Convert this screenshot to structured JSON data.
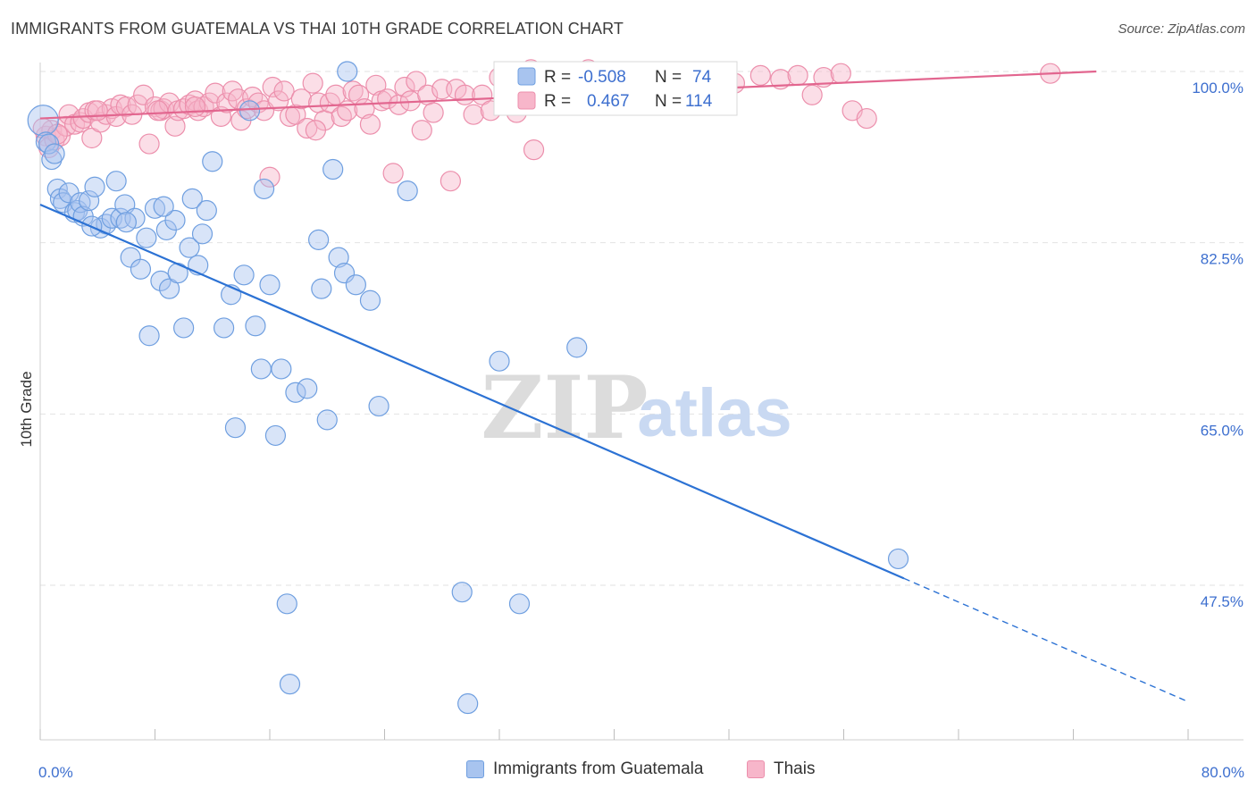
{
  "header": {
    "title": "IMMIGRANTS FROM GUATEMALA VS THAI 10TH GRADE CORRELATION CHART",
    "source": "Source: ZipAtlas.com"
  },
  "watermark": {
    "zip": "ZIP",
    "atlas": "atlas"
  },
  "colors": {
    "blue_fill": "#a8c4ef",
    "blue_stroke": "#6f9fe0",
    "blue_line": "#2c72d4",
    "pink_fill": "#f7b6ca",
    "pink_stroke": "#ec8fac",
    "pink_line": "#e2668f",
    "value_text": "#3d6fcf",
    "grid": "#e2e2e2"
  },
  "stats_legend": [
    {
      "r_label": "R =",
      "r_value": "-0.508",
      "n_label": "N =",
      "n_value": "74"
    },
    {
      "r_label": "R =",
      "r_value": "0.467",
      "n_label": "N =",
      "n_value": "114"
    }
  ],
  "chart_data": {
    "type": "scatter",
    "title": "IMMIGRANTS FROM GUATEMALA VS THAI 10TH GRADE CORRELATION CHART",
    "xlabel": "",
    "ylabel": "10th Grade",
    "xlim": [
      0,
      80
    ],
    "ylim": [
      33,
      103
    ],
    "x_tick_labels": [
      "0.0%",
      "80.0%"
    ],
    "y_ticks": [
      47.5,
      65.0,
      82.5,
      100.0
    ],
    "y_tick_labels": [
      "47.5%",
      "65.0%",
      "82.5%",
      "100.0%"
    ],
    "grid": true,
    "legend_position": "bottom",
    "series": [
      {
        "name": "Immigrants from Guatemala",
        "r": -0.508,
        "n": 74,
        "trend": {
          "x0": 0,
          "y0": 86.4,
          "x1": 60.2,
          "y1": 48.2,
          "dashed_to_x": 80,
          "dashed_to_y": 35.6
        },
        "points": [
          [
            0.2,
            95.0
          ],
          [
            0.4,
            92.8
          ],
          [
            0.8,
            91.0
          ],
          [
            1.2,
            88.0
          ],
          [
            1.4,
            87.0
          ],
          [
            1.6,
            86.6
          ],
          [
            2.0,
            87.6
          ],
          [
            2.4,
            85.6
          ],
          [
            2.6,
            85.8
          ],
          [
            2.8,
            86.6
          ],
          [
            3.0,
            85.2
          ],
          [
            3.4,
            86.8
          ],
          [
            3.8,
            88.2
          ],
          [
            4.2,
            84.0
          ],
          [
            4.6,
            84.4
          ],
          [
            5.0,
            85.0
          ],
          [
            5.3,
            88.8
          ],
          [
            5.6,
            85.0
          ],
          [
            5.9,
            86.4
          ],
          [
            6.3,
            81.0
          ],
          [
            6.6,
            85.0
          ],
          [
            7.0,
            79.8
          ],
          [
            7.4,
            83.0
          ],
          [
            7.6,
            73.0
          ],
          [
            8.0,
            86.0
          ],
          [
            8.4,
            78.6
          ],
          [
            8.8,
            83.8
          ],
          [
            9.0,
            77.8
          ],
          [
            9.4,
            84.8
          ],
          [
            9.6,
            79.4
          ],
          [
            10.0,
            73.8
          ],
          [
            10.4,
            82.0
          ],
          [
            10.6,
            87.0
          ],
          [
            11.0,
            80.2
          ],
          [
            11.3,
            83.4
          ],
          [
            11.6,
            85.8
          ],
          [
            12.0,
            90.8
          ],
          [
            12.8,
            73.8
          ],
          [
            13.3,
            77.2
          ],
          [
            13.6,
            63.6
          ],
          [
            14.2,
            79.2
          ],
          [
            14.6,
            96.0
          ],
          [
            15.0,
            74.0
          ],
          [
            15.4,
            69.6
          ],
          [
            15.6,
            88.0
          ],
          [
            16.0,
            78.2
          ],
          [
            16.4,
            62.8
          ],
          [
            16.8,
            69.6
          ],
          [
            17.2,
            45.6
          ],
          [
            17.4,
            37.4
          ],
          [
            17.8,
            67.2
          ],
          [
            18.6,
            67.6
          ],
          [
            19.4,
            82.8
          ],
          [
            19.6,
            77.8
          ],
          [
            20.0,
            64.4
          ],
          [
            20.4,
            90.0
          ],
          [
            20.8,
            81.0
          ],
          [
            21.2,
            79.4
          ],
          [
            21.4,
            100.0
          ],
          [
            22.0,
            78.2
          ],
          [
            23.0,
            76.6
          ],
          [
            23.6,
            65.8
          ],
          [
            25.6,
            87.8
          ],
          [
            29.4,
            46.8
          ],
          [
            29.8,
            35.4
          ],
          [
            32.0,
            70.4
          ],
          [
            33.4,
            45.6
          ],
          [
            37.4,
            71.8
          ],
          [
            59.8,
            50.2
          ],
          [
            0.6,
            92.6
          ],
          [
            3.6,
            84.2
          ],
          [
            6.0,
            84.6
          ],
          [
            8.6,
            86.2
          ],
          [
            1.0,
            91.6
          ]
        ],
        "sizes": [
          34,
          22,
          22,
          22,
          22,
          22,
          22,
          22,
          22,
          22,
          22,
          22,
          22,
          22,
          22,
          22,
          22,
          22,
          22,
          22,
          22,
          22,
          22,
          22,
          22,
          22,
          22,
          22,
          22,
          22,
          22,
          22,
          22,
          22,
          22,
          22,
          22,
          22,
          22,
          22,
          22,
          22,
          22,
          22,
          22,
          22,
          22,
          22,
          22,
          22,
          22,
          22,
          22,
          22,
          22,
          22,
          22,
          22,
          22,
          22,
          22,
          22,
          22,
          22,
          22,
          22,
          22,
          22,
          22,
          22,
          22,
          22,
          22,
          22
        ]
      },
      {
        "name": "Thais",
        "r": 0.467,
        "n": 114,
        "trend": {
          "x0": 0,
          "y0": 95.2,
          "x1": 73.6,
          "y1": 100.0
        },
        "points": [
          [
            0.4,
            93.4
          ],
          [
            0.6,
            92.2
          ],
          [
            0.8,
            94.0
          ],
          [
            1.0,
            93.0
          ],
          [
            1.4,
            93.4
          ],
          [
            1.8,
            94.4
          ],
          [
            2.0,
            95.6
          ],
          [
            2.4,
            94.6
          ],
          [
            2.8,
            94.8
          ],
          [
            3.0,
            95.2
          ],
          [
            3.4,
            95.8
          ],
          [
            3.6,
            93.2
          ],
          [
            3.8,
            96.0
          ],
          [
            4.2,
            94.8
          ],
          [
            4.6,
            95.6
          ],
          [
            5.0,
            96.2
          ],
          [
            5.3,
            95.4
          ],
          [
            5.6,
            96.6
          ],
          [
            6.0,
            96.4
          ],
          [
            6.4,
            95.6
          ],
          [
            6.8,
            96.6
          ],
          [
            7.2,
            97.6
          ],
          [
            7.6,
            92.6
          ],
          [
            8.0,
            96.4
          ],
          [
            8.4,
            96.0
          ],
          [
            8.6,
            96.2
          ],
          [
            9.0,
            96.8
          ],
          [
            9.4,
            94.4
          ],
          [
            9.6,
            96.0
          ],
          [
            10.0,
            96.2
          ],
          [
            10.4,
            96.6
          ],
          [
            10.8,
            97.0
          ],
          [
            11.0,
            96.0
          ],
          [
            11.4,
            96.4
          ],
          [
            11.8,
            96.8
          ],
          [
            12.2,
            97.8
          ],
          [
            12.6,
            95.4
          ],
          [
            13.0,
            96.8
          ],
          [
            13.4,
            98.0
          ],
          [
            13.8,
            97.2
          ],
          [
            14.0,
            95.0
          ],
          [
            14.4,
            96.2
          ],
          [
            14.8,
            97.4
          ],
          [
            15.2,
            96.8
          ],
          [
            15.6,
            96.0
          ],
          [
            16.0,
            89.2
          ],
          [
            16.2,
            98.4
          ],
          [
            16.6,
            97.0
          ],
          [
            17.0,
            98.0
          ],
          [
            17.4,
            95.4
          ],
          [
            17.8,
            95.6
          ],
          [
            18.2,
            97.2
          ],
          [
            18.6,
            94.2
          ],
          [
            19.0,
            98.8
          ],
          [
            19.4,
            96.8
          ],
          [
            19.8,
            95.0
          ],
          [
            20.2,
            96.8
          ],
          [
            20.6,
            97.6
          ],
          [
            21.0,
            95.4
          ],
          [
            21.4,
            96.0
          ],
          [
            21.8,
            98.0
          ],
          [
            22.2,
            97.6
          ],
          [
            22.6,
            96.2
          ],
          [
            23.0,
            94.6
          ],
          [
            23.4,
            98.6
          ],
          [
            23.8,
            97.0
          ],
          [
            24.2,
            97.2
          ],
          [
            24.6,
            89.6
          ],
          [
            25.0,
            96.6
          ],
          [
            25.4,
            98.4
          ],
          [
            25.8,
            97.0
          ],
          [
            26.2,
            99.0
          ],
          [
            26.6,
            94.0
          ],
          [
            27.0,
            97.6
          ],
          [
            27.4,
            95.8
          ],
          [
            28.0,
            98.2
          ],
          [
            28.6,
            88.8
          ],
          [
            29.0,
            98.2
          ],
          [
            29.6,
            97.6
          ],
          [
            30.2,
            95.6
          ],
          [
            30.8,
            97.6
          ],
          [
            31.4,
            96.0
          ],
          [
            32.0,
            99.4
          ],
          [
            32.6,
            97.8
          ],
          [
            33.2,
            95.8
          ],
          [
            34.0,
            98.4
          ],
          [
            34.4,
            92.0
          ],
          [
            35.0,
            97.2
          ],
          [
            36.2,
            98.2
          ],
          [
            37.0,
            97.6
          ],
          [
            38.2,
            100.2
          ],
          [
            39.6,
            98.0
          ],
          [
            40.8,
            98.6
          ],
          [
            42.4,
            99.0
          ],
          [
            44.0,
            99.2
          ],
          [
            45.8,
            98.6
          ],
          [
            47.2,
            99.2
          ],
          [
            48.4,
            98.8
          ],
          [
            50.2,
            99.6
          ],
          [
            51.6,
            99.2
          ],
          [
            52.8,
            99.6
          ],
          [
            53.8,
            97.6
          ],
          [
            54.6,
            99.4
          ],
          [
            55.8,
            99.8
          ],
          [
            56.6,
            96.0
          ],
          [
            57.6,
            95.2
          ],
          [
            70.4,
            99.8
          ],
          [
            0.2,
            94.2
          ],
          [
            1.2,
            93.6
          ],
          [
            19.2,
            94.0
          ],
          [
            10.8,
            96.4
          ],
          [
            4.0,
            96.0
          ],
          [
            8.2,
            96.0
          ],
          [
            34.2,
            100.2
          ]
        ],
        "sizes": [
          22,
          22,
          22,
          22,
          22,
          22,
          22,
          22,
          22,
          22,
          22,
          22,
          22,
          22,
          22,
          22,
          22,
          22,
          22,
          22,
          22,
          22,
          22,
          22,
          22,
          22,
          22,
          22,
          22,
          22,
          22,
          22,
          22,
          22,
          22,
          22,
          22,
          22,
          22,
          22,
          22,
          22,
          22,
          22,
          22,
          22,
          22,
          22,
          22,
          22,
          22,
          22,
          22,
          22,
          22,
          22,
          22,
          22,
          22,
          22,
          22,
          22,
          22,
          22,
          22,
          22,
          22,
          22,
          22,
          22,
          22,
          22,
          22,
          22,
          22,
          22,
          22,
          22,
          22,
          22,
          22,
          22,
          22,
          22,
          22,
          22,
          22,
          22,
          22,
          22,
          22,
          22,
          22,
          22,
          22,
          22,
          22,
          22,
          22,
          22,
          22,
          22,
          22,
          22,
          22,
          22,
          22,
          22,
          22,
          22,
          22,
          22,
          22,
          22
        ]
      }
    ]
  }
}
